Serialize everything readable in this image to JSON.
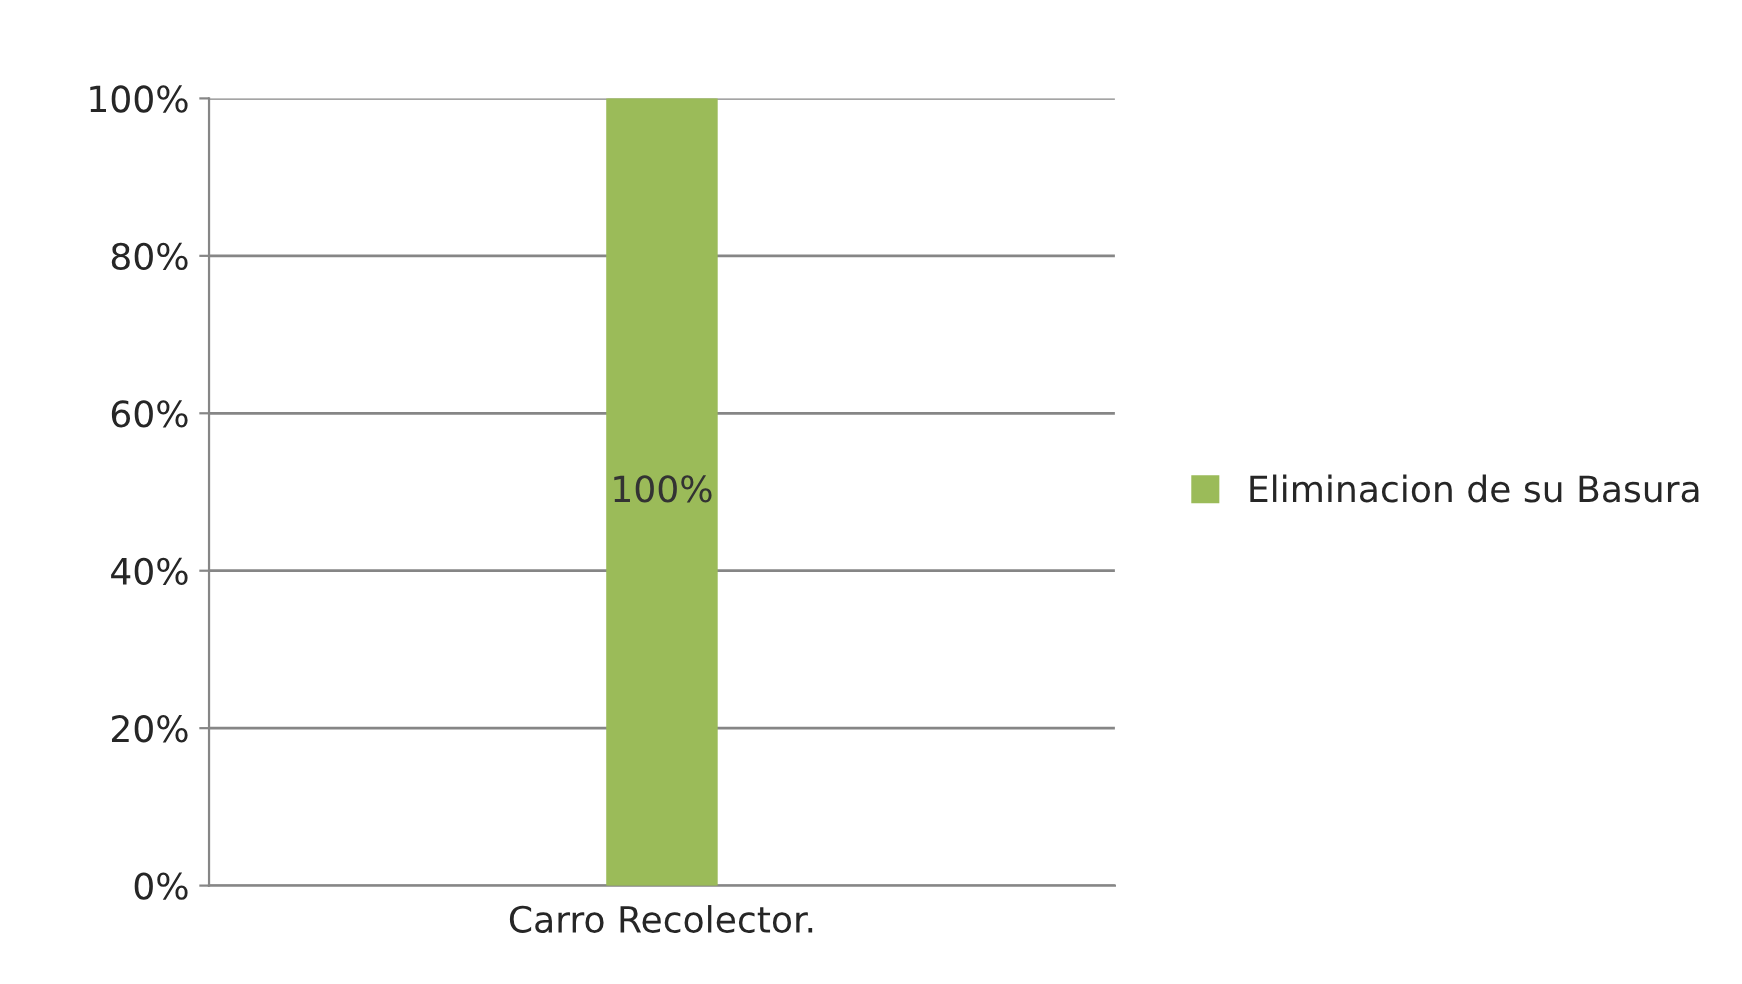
{
  "chart_data": {
    "type": "bar",
    "categories": [
      "Carro Recolector."
    ],
    "series": [
      {
        "name": "Eliminacion de su Basura",
        "color": "#9bbb59",
        "values": [
          100
        ],
        "value_labels": [
          "100%"
        ]
      }
    ],
    "ylim": [
      0,
      100
    ],
    "yticks": [
      {
        "value": 0,
        "label": "0%"
      },
      {
        "value": 20,
        "label": "20%"
      },
      {
        "value": 40,
        "label": "40%"
      },
      {
        "value": 60,
        "label": "60%"
      },
      {
        "value": 80,
        "label": "80%"
      },
      {
        "value": 100,
        "label": "100%"
      }
    ],
    "grid": "y",
    "legend": "right"
  }
}
